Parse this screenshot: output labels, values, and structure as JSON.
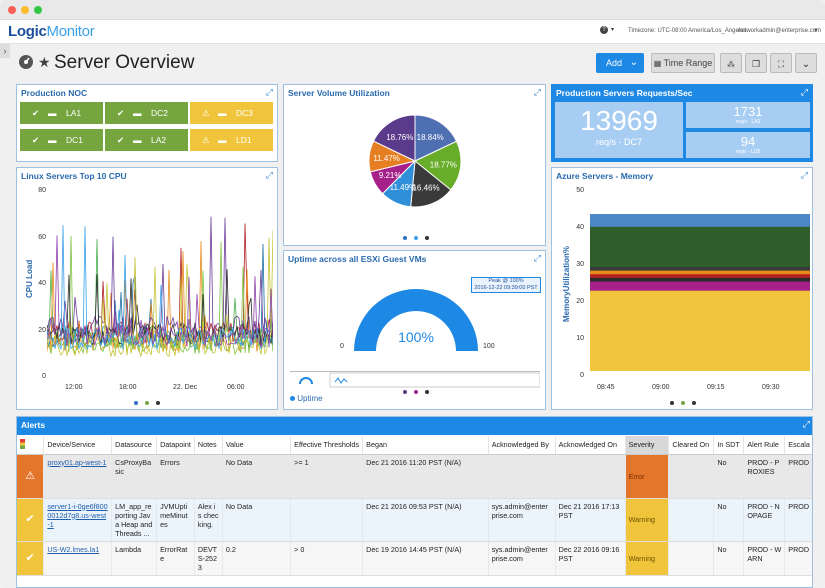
{
  "topbar": {
    "logo_a": "Logic",
    "logo_b": "Monitor",
    "help": "?",
    "timezone": "Timezone: UTC-08:00 America/Los_Angeles",
    "user": "networkadmin@enterprise.com"
  },
  "page": {
    "title": "Server Overview",
    "add": "Add",
    "time_range": "Time Range"
  },
  "noc": {
    "title": "Production NOC",
    "items": [
      "LA1",
      "DC2",
      "DC3",
      "DC1",
      "LA2",
      "LD1"
    ]
  },
  "pie": {
    "title": "Server Volume Utilization",
    "labels": [
      "18.84%",
      "18.77%",
      "16.46%",
      "11.49%",
      "9.21%",
      "11.47%",
      "18.76%"
    ]
  },
  "bignum": {
    "title": "Production Servers Requests/Sec",
    "main": "13969",
    "main_sub": "req/s - DC7",
    "a": "1731",
    "a_sub": "req/s - LA3",
    "b": "94",
    "b_sub": "req/s - LD5"
  },
  "linux": {
    "title": "Linux Servers Top 10 CPU",
    "ylabel": "CPU Load",
    "yticks": [
      "80",
      "60",
      "40",
      "20",
      "0"
    ],
    "xticks": [
      "12:00",
      "18:00",
      "22. Dec",
      "06:00"
    ]
  },
  "uptime": {
    "title": "Uptime across all ESXi Guest VMs",
    "value": "100%",
    "min": "0",
    "max": "100",
    "peak1": "Peak @ 100%",
    "peak2": "2016-12-22 09:39:00 PST",
    "legend": "Uptime"
  },
  "azure": {
    "title": "Azure Servers - Memory",
    "ylabel": "MemoryUtilization%",
    "yticks": [
      "50",
      "40",
      "30",
      "20",
      "10",
      "0"
    ],
    "xticks": [
      "08:45",
      "09:00",
      "09:15",
      "09:30"
    ]
  },
  "alerts": {
    "title": "Alerts",
    "headers": [
      "Device/Service",
      "Datasource",
      "Datapoint",
      "Notes",
      "Value",
      "Effective Thresholds",
      "Began",
      "Acknowledged By",
      "Acknowledged On",
      "Severity",
      "Cleared On",
      "In SDT",
      "Alert Rule",
      "Escala"
    ],
    "rows": [
      {
        "device": "proxy01.ap-west-1",
        "ds": "CsProxyBasic",
        "dp": "Errors",
        "notes": "",
        "value": "No Data",
        "thr": ">= 1",
        "began": "Dec 21 2016 11:20 PST (N/A)",
        "ackby": "",
        "ackon": "",
        "sev": "Error",
        "cleared": "",
        "sdt": "No",
        "rule": "PROD - PROXIES",
        "esc": "PROD"
      },
      {
        "device": "server1-i-0ge6f8000012d7g8.us-west-1",
        "ds": "LM_app_reporting Java Heap and Threads ...",
        "dp": "JVMUptimeMinutes",
        "notes": "Alex is checking.",
        "value": "No Data",
        "thr": "",
        "began": "Dec 21 2016 09:53 PST (N/A)",
        "ackby": "sys.admin@enterprise.com",
        "ackon": "Dec 21 2016 17:13 PST",
        "sev": "Warning",
        "cleared": "",
        "sdt": "No",
        "rule": "PROD - NOPAGE",
        "esc": "PROD"
      },
      {
        "device": "US-W2.lmes.la1",
        "ds": "Lambda",
        "dp": "ErrorRate",
        "notes": "DEVTS-2523",
        "value": "0.2",
        "thr": "> 0",
        "began": "Dec 19 2016 14:45 PST (N/A)",
        "ackby": "sys.admin@enterprise.com",
        "ackon": "Dec 22 2016 09:16 PST",
        "sev": "Warning",
        "cleared": "",
        "sdt": "No",
        "rule": "PROD - WARN",
        "esc": "PROD"
      }
    ]
  },
  "colors": {
    "accent": "#1e88e5",
    "ok": "#76a540",
    "warn": "#f0c53c",
    "error": "#e4762b",
    "pie": [
      "#4f6fb3",
      "#67ad2a",
      "#3a3a3a",
      "#2f8fd8",
      "#a6208a",
      "#e67e22",
      "#5a3a8a"
    ]
  }
}
